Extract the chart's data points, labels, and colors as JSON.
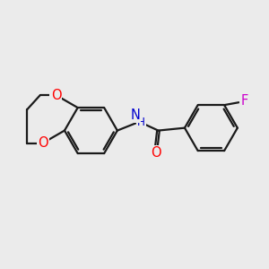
{
  "background_color": "#ebebeb",
  "bond_color": "#1a1a1a",
  "atom_colors": {
    "O": "#ff0000",
    "N": "#0000cd",
    "F": "#cc00cc",
    "C": "#1a1a1a"
  },
  "lw": 1.6,
  "fs": 10.5
}
